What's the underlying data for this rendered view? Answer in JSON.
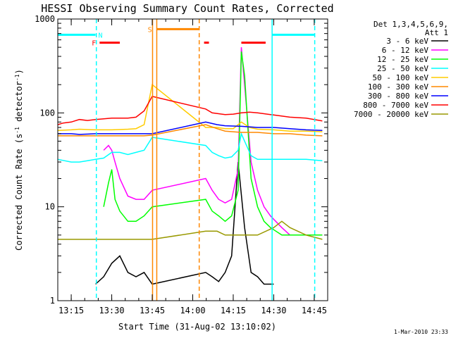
{
  "chart_data": {
    "type": "line",
    "title": "HESSI Observing Summary Count Rates, Corrected",
    "xlabel": "Start Time (31-Aug-02 13:10:02)",
    "ylabel": "Corrected Count Rate (s⁻¹ detector⁻¹)",
    "ylabel_main": "Corrected Count Rate (s",
    "ylabel_sup1": "-1",
    "ylabel_mid": " detector",
    "ylabel_sup2": "-1",
    "ylabel_end": ")",
    "y_scale": "log",
    "ylim": [
      1,
      1000
    ],
    "xlim": [
      13.167,
      14.833
    ],
    "x_ticks": [
      {
        "value": 13.25,
        "label": "13:15"
      },
      {
        "value": 13.5,
        "label": "13:30"
      },
      {
        "value": 13.75,
        "label": "13:45"
      },
      {
        "value": 14.0,
        "label": "14:00"
      },
      {
        "value": 14.25,
        "label": "14:15"
      },
      {
        "value": 14.5,
        "label": "14:30"
      },
      {
        "value": 14.75,
        "label": "14:45"
      }
    ],
    "y_ticks": [
      {
        "value": 1,
        "label": "1"
      },
      {
        "value": 10,
        "label": "10"
      },
      {
        "value": 100,
        "label": "100"
      },
      {
        "value": 1000,
        "label": "1000"
      }
    ],
    "legend_header": [
      "Det 1,3,4,5,6,9,",
      "Att 1"
    ],
    "legend_position": "right",
    "series": [
      {
        "name": "3 - 6 keV",
        "color": "#000000",
        "x": [
          13.4,
          13.45,
          13.5,
          13.55,
          13.6,
          13.65,
          13.7,
          13.75,
          14.08,
          14.12,
          14.16,
          14.2,
          14.24,
          14.28,
          14.32,
          14.36,
          14.4,
          14.44,
          14.48,
          14.5
        ],
        "y": [
          1.5,
          1.8,
          2.5,
          3.0,
          2.0,
          1.8,
          2.0,
          1.5,
          2.0,
          1.8,
          1.6,
          2.0,
          3.0,
          30,
          6,
          2.0,
          1.8,
          1.5,
          1.5,
          1.5
        ]
      },
      {
        "name": "6 - 12 keV",
        "color": "#ff00ff",
        "x": [
          13.45,
          13.48,
          13.5,
          13.52,
          13.55,
          13.6,
          13.65,
          13.7,
          13.75,
          14.08,
          14.12,
          14.16,
          14.2,
          14.24,
          14.28,
          14.3,
          14.32,
          14.36,
          14.4,
          14.44,
          14.48,
          14.55,
          14.6,
          14.65,
          14.7,
          14.75,
          14.8
        ],
        "y": [
          40,
          45,
          40,
          30,
          20,
          13,
          12,
          12,
          15,
          20,
          15,
          12,
          11,
          12,
          25,
          500,
          200,
          30,
          15,
          10,
          8,
          6,
          5,
          5,
          5,
          5,
          5
        ]
      },
      {
        "name": "12 - 25 keV",
        "color": "#00ff00",
        "x": [
          13.45,
          13.48,
          13.5,
          13.52,
          13.55,
          13.6,
          13.65,
          13.7,
          13.75,
          14.08,
          14.12,
          14.16,
          14.2,
          14.24,
          14.28,
          14.3,
          14.32,
          14.36,
          14.4,
          14.44,
          14.48,
          14.55,
          14.6,
          14.65,
          14.7,
          14.75,
          14.8
        ],
        "y": [
          10,
          18,
          25,
          12,
          9,
          7,
          7,
          8,
          10,
          12,
          9,
          8,
          7,
          8,
          15,
          450,
          250,
          20,
          10,
          7,
          6,
          5,
          5,
          5,
          5,
          5,
          5
        ]
      },
      {
        "name": "25 - 50 keV",
        "color": "#00ffff",
        "x": [
          13.167,
          13.25,
          13.3,
          13.35,
          13.4,
          13.45,
          13.5,
          13.55,
          13.6,
          13.65,
          13.7,
          13.75,
          14.08,
          14.12,
          14.16,
          14.2,
          14.24,
          14.28,
          14.3,
          14.32,
          14.36,
          14.4,
          14.5,
          14.6,
          14.7,
          14.8
        ],
        "y": [
          32,
          30,
          30,
          31,
          32,
          33,
          38,
          38,
          36,
          38,
          40,
          55,
          45,
          38,
          35,
          33,
          34,
          40,
          60,
          50,
          35,
          32,
          32,
          32,
          32,
          31
        ]
      },
      {
        "name": "50 - 100 keV",
        "color": "#ffcc00",
        "x": [
          13.167,
          13.25,
          13.3,
          13.4,
          13.5,
          13.6,
          13.65,
          13.7,
          13.75,
          14.08,
          14.15,
          14.2,
          14.25,
          14.3,
          14.35,
          14.4,
          14.5,
          14.6,
          14.7,
          14.8
        ],
        "y": [
          65,
          66,
          67,
          66,
          66,
          67,
          68,
          75,
          200,
          70,
          70,
          68,
          68,
          80,
          70,
          67,
          66,
          64,
          64,
          63
        ]
      },
      {
        "name": "100 - 300 keV",
        "color": "#ff8800",
        "x": [
          13.167,
          13.25,
          13.3,
          13.4,
          13.5,
          13.6,
          13.7,
          13.75,
          14.08,
          14.15,
          14.2,
          14.3,
          14.4,
          14.5,
          14.6,
          14.7,
          14.8
        ],
        "y": [
          57,
          57,
          57,
          57,
          57,
          57,
          57,
          58,
          75,
          68,
          64,
          62,
          62,
          60,
          60,
          58,
          57
        ]
      },
      {
        "name": "300 - 800 keV",
        "color": "#0000ff",
        "x": [
          13.167,
          13.25,
          13.3,
          13.4,
          13.5,
          13.6,
          13.7,
          13.75,
          14.08,
          14.15,
          14.2,
          14.3,
          14.4,
          14.5,
          14.6,
          14.7,
          14.8
        ],
        "y": [
          60,
          60,
          59,
          60,
          60,
          60,
          60,
          60,
          80,
          75,
          73,
          72,
          70,
          70,
          68,
          66,
          65
        ]
      },
      {
        "name": "800 - 7000 keV",
        "color": "#ff0000",
        "x": [
          13.167,
          13.2,
          13.25,
          13.3,
          13.35,
          13.4,
          13.5,
          13.6,
          13.65,
          13.7,
          13.75,
          14.08,
          14.12,
          14.16,
          14.2,
          14.25,
          14.3,
          14.35,
          14.4,
          14.5,
          14.6,
          14.7,
          14.8
        ],
        "y": [
          75,
          78,
          80,
          85,
          83,
          85,
          88,
          88,
          90,
          105,
          150,
          110,
          100,
          98,
          96,
          97,
          100,
          102,
          100,
          95,
          90,
          88,
          82
        ]
      },
      {
        "name": "7000 - 20000 keV",
        "color": "#999900",
        "x": [
          13.167,
          13.25,
          13.3,
          13.4,
          13.5,
          13.6,
          13.7,
          13.75,
          14.08,
          14.15,
          14.2,
          14.3,
          14.4,
          14.5,
          14.55,
          14.6,
          14.7,
          14.8
        ],
        "y": [
          4.5,
          4.5,
          4.5,
          4.5,
          4.5,
          4.5,
          4.5,
          4.5,
          5.5,
          5.5,
          5.0,
          5.0,
          5.0,
          6.0,
          7.0,
          6.0,
          5.0,
          4.5
        ]
      }
    ],
    "flag_bars": [
      {
        "color": "#00ffff",
        "x0": 13.167,
        "x1": 13.4,
        "level": 680
      },
      {
        "color": "#ff0000",
        "x0": 13.425,
        "x1": 13.55,
        "level": 560
      },
      {
        "color": "#ff8800",
        "x0": 13.776,
        "x1": 14.04,
        "level": 780
      },
      {
        "color": "#ff0000",
        "x0": 14.07,
        "x1": 14.1,
        "level": 560
      },
      {
        "color": "#ff0000",
        "x0": 14.3,
        "x1": 14.45,
        "level": 560
      },
      {
        "color": "#00ffff",
        "x0": 14.49,
        "x1": 14.75,
        "level": 680
      }
    ],
    "flag_labels": [
      {
        "text": "F",
        "color": "#ff0000",
        "x": 13.39,
        "level": 560
      },
      {
        "text": "N",
        "color": "#00ffff",
        "x": 13.43,
        "level": 680
      },
      {
        "text": "S",
        "color": "#ff8800",
        "x": 13.735,
        "level": 780
      }
    ],
    "vertical_lines": [
      {
        "x": 13.405,
        "color": "#00ffff",
        "style": "dashed"
      },
      {
        "x": 13.752,
        "color": "#ff8800",
        "style": "solid"
      },
      {
        "x": 13.778,
        "color": "#ff8800",
        "style": "solid"
      },
      {
        "x": 14.04,
        "color": "#ff8800",
        "style": "dashed"
      },
      {
        "x": 14.49,
        "color": "#00ffff",
        "style": "solid"
      },
      {
        "x": 14.753,
        "color": "#00ffff",
        "style": "dashed"
      }
    ],
    "grid": false
  },
  "footer": {
    "timestamp": "1-Mar-2010 23:33"
  }
}
